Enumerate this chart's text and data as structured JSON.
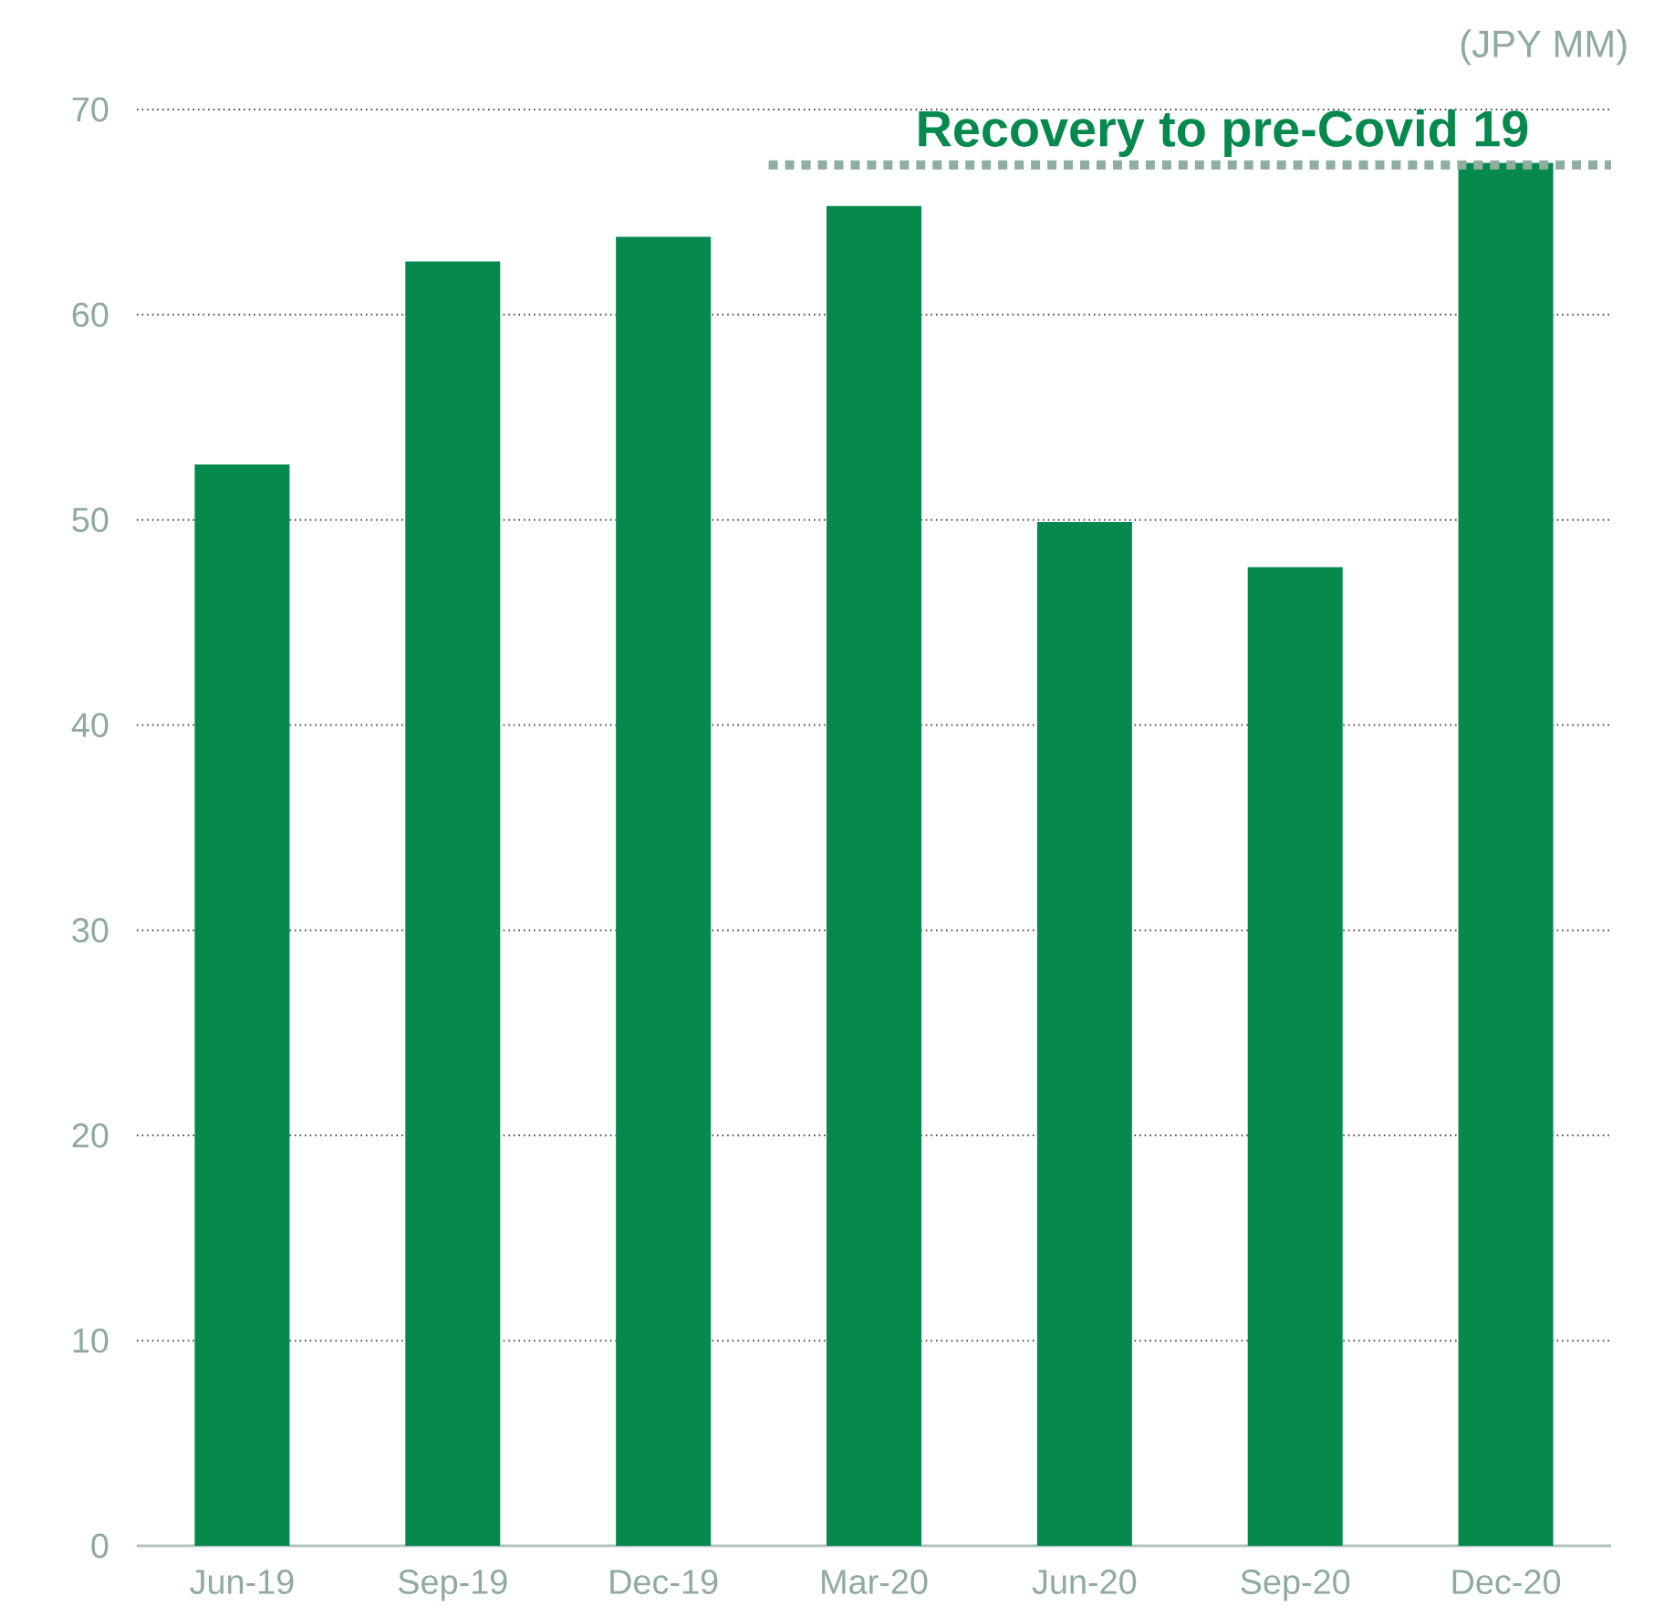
{
  "chart_data": {
    "type": "bar",
    "ylabel": "(JPY MM)",
    "categories": [
      "Jun-19",
      "Sep-19",
      "Dec-19",
      "Mar-20",
      "Jun-20",
      "Sep-20",
      "Dec-20"
    ],
    "values": [
      52.7,
      62.6,
      63.8,
      65.3,
      49.9,
      47.7,
      67.4
    ],
    "color": "#06894d",
    "ylim": [
      0,
      70
    ],
    "yticks": [
      0,
      10,
      20,
      30,
      40,
      50,
      60,
      70
    ],
    "grid": "y",
    "ref_lines": [
      {
        "axis": "y",
        "value": 67.3,
        "label": "**Recovery to pre-Covid 19**",
        "color": "#8fada0",
        "line_style": "dotted"
      }
    ]
  }
}
